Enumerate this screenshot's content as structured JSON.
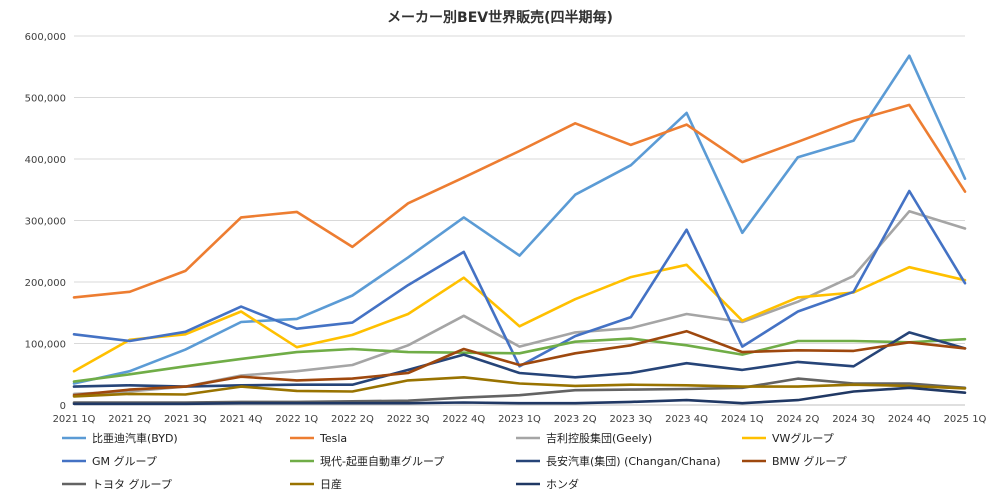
{
  "chart_data": {
    "type": "line",
    "title": "メーカー別BEV世界販売(四半期毎)",
    "xlabel": "",
    "ylabel": "",
    "ylim": [
      0,
      600000
    ],
    "yticks": [
      "0",
      "100,000",
      "200,000",
      "300,000",
      "400,000",
      "500,000",
      "600,000"
    ],
    "grid": "horizontal",
    "legend_position": "bottom",
    "categories": [
      "2021 1Q",
      "2021 2Q",
      "2021 3Q",
      "2021 4Q",
      "2022 1Q",
      "2022 2Q",
      "2022 3Q",
      "2022 4Q",
      "2023 1Q",
      "2023 2Q",
      "2023 3Q",
      "2023 4Q",
      "2024 1Q",
      "2024 2Q",
      "2024 3Q",
      "2024 4Q",
      "2025 1Q"
    ],
    "series": [
      {
        "name": "比亜迪汽車(BYD)",
        "color": "#5B9BD5",
        "values": [
          35000,
          55000,
          90000,
          135000,
          140000,
          178000,
          240000,
          305000,
          243000,
          342000,
          390000,
          475000,
          280000,
          403000,
          430000,
          568000,
          368000
        ]
      },
      {
        "name": "Tesla",
        "color": "#ED7D31",
        "values": [
          175000,
          184000,
          218000,
          305000,
          314000,
          257000,
          328000,
          370000,
          413000,
          458000,
          423000,
          456000,
          395000,
          428000,
          462000,
          488000,
          347000
        ]
      },
      {
        "name": "吉利控股集団(Geely)",
        "color": "#A5A5A5",
        "values": [
          18000,
          22000,
          30000,
          48000,
          55000,
          65000,
          97000,
          145000,
          95000,
          118000,
          125000,
          148000,
          135000,
          168000,
          210000,
          315000,
          287000
        ]
      },
      {
        "name": "VWグループ",
        "color": "#FFC000",
        "values": [
          55000,
          106000,
          115000,
          152000,
          94000,
          114000,
          148000,
          207000,
          128000,
          172000,
          208000,
          228000,
          137000,
          175000,
          183000,
          224000,
          203000
        ]
      },
      {
        "name": "GM グループ",
        "color": "#4472C4",
        "values": [
          115000,
          104000,
          119000,
          160000,
          124000,
          134000,
          195000,
          249000,
          63000,
          112000,
          143000,
          285000,
          95000,
          152000,
          184000,
          348000,
          198000
        ]
      },
      {
        "name": "現代-起亜自動車グループ",
        "color": "#70AD47",
        "values": [
          38000,
          50000,
          63000,
          75000,
          86000,
          91000,
          86000,
          85000,
          84000,
          103000,
          108000,
          97000,
          82000,
          104000,
          104000,
          102000,
          107000
        ]
      },
      {
        "name": "長安汽車(集団) (Changan/Chana)",
        "color": "#264478",
        "values": [
          30000,
          32000,
          30000,
          32000,
          33000,
          33000,
          57000,
          82000,
          52000,
          45000,
          52000,
          68000,
          57000,
          70000,
          63000,
          118000,
          92000
        ]
      },
      {
        "name": "BMW グループ",
        "color": "#9E480E",
        "values": [
          16000,
          25000,
          30000,
          46000,
          40000,
          43000,
          52000,
          91000,
          65000,
          84000,
          97000,
          120000,
          86000,
          89000,
          88000,
          102000,
          92000
        ]
      },
      {
        "name": "トヨタ グループ",
        "color": "#636363",
        "values": [
          4000,
          4000,
          4000,
          5000,
          5000,
          6000,
          7000,
          12000,
          16000,
          24000,
          25000,
          26000,
          28000,
          43000,
          35000,
          35000,
          28000
        ]
      },
      {
        "name": "日産",
        "color": "#997300",
        "values": [
          14000,
          18000,
          17000,
          30000,
          23000,
          22000,
          40000,
          45000,
          35000,
          31000,
          33000,
          32000,
          30000,
          30000,
          33000,
          31000,
          27000
        ]
      },
      {
        "name": "ホンダ",
        "color": "#203864",
        "values": [
          2000,
          2000,
          2000,
          3000,
          3000,
          3000,
          3000,
          4000,
          3000,
          3000,
          5000,
          8000,
          3000,
          8000,
          22000,
          28000,
          20000
        ]
      }
    ]
  }
}
